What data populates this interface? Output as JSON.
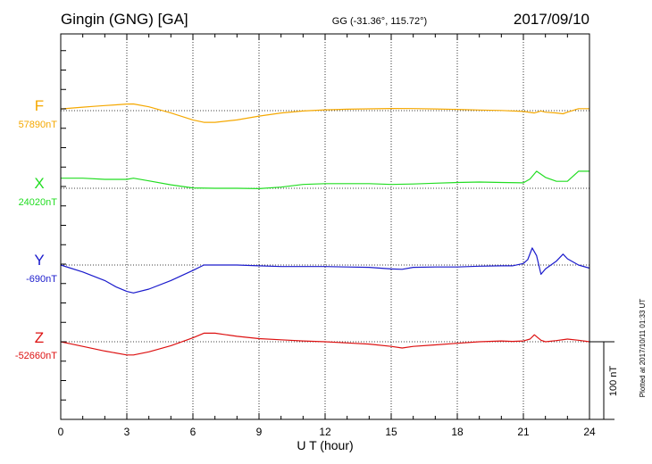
{
  "header": {
    "station": "Gingin (GNG)  [GA]",
    "coords": "GG (-31.36°, 115.72°)",
    "date": "2017/09/10"
  },
  "footer": {
    "plotted": "Plotted at 2017/10/11 01:33 UT"
  },
  "chart_data": {
    "type": "line",
    "xlabel": "U T (hour)",
    "xlim": [
      0,
      24
    ],
    "xticks": [
      "0",
      "3",
      "6",
      "9",
      "12",
      "15",
      "18",
      "21",
      "24"
    ],
    "scale_bar": {
      "label": "100 nT",
      "value_nT": 100
    },
    "series": [
      {
        "name": "F",
        "baseline_label": "57890nT",
        "baseline_nT": 57890,
        "color": "#f5a800",
        "x": [
          0,
          0.5,
          1,
          1.5,
          2,
          2.5,
          3,
          3.3,
          4,
          5,
          6,
          6.5,
          7,
          8,
          9,
          10,
          11,
          12,
          13,
          14,
          15,
          16,
          17,
          18,
          19,
          20,
          21,
          21.5,
          21.8,
          22,
          22.5,
          22.8,
          23,
          23.5,
          24
        ],
        "offset_nT": [
          2.2,
          3.3,
          4.5,
          5.5,
          6.5,
          7.5,
          8.5,
          8.6,
          5,
          -3,
          -12,
          -15,
          -15,
          -12,
          -7,
          -3,
          -0.5,
          1,
          1.8,
          2.3,
          2.8,
          2.6,
          2.2,
          1.6,
          0.8,
          0.2,
          -1,
          -3,
          -0.5,
          -2,
          -3,
          -4,
          -2,
          2.5,
          2.5
        ]
      },
      {
        "name": "X",
        "baseline_label": "24020nT",
        "baseline_nT": 24020,
        "color": "#22dd22",
        "x": [
          0,
          1,
          2,
          3,
          3.3,
          4,
          5,
          6,
          7,
          8,
          9,
          10,
          11,
          12,
          13,
          14,
          15,
          16,
          17,
          18,
          19,
          20,
          21,
          21.3,
          21.6,
          22,
          22.5,
          23,
          23.5,
          24
        ],
        "offset_nT": [
          13,
          13,
          11.5,
          11.5,
          13,
          9.5,
          4.5,
          0.5,
          0,
          0,
          -0.5,
          1.5,
          5,
          6,
          6,
          6,
          5,
          5.5,
          6.5,
          7.5,
          8,
          7.5,
          7,
          12,
          22,
          14,
          9,
          9,
          22,
          22
        ]
      },
      {
        "name": "Y",
        "baseline_label": "-690nT",
        "baseline_nT": -690,
        "color": "#1a1acc",
        "x": [
          0,
          1,
          2,
          2.5,
          3,
          3.3,
          4,
          5,
          6,
          6.5,
          7,
          8,
          9,
          10,
          11,
          12,
          13,
          14,
          15,
          15.5,
          16,
          17,
          18,
          19,
          20,
          20.5,
          21,
          21.2,
          21.4,
          21.6,
          21.8,
          22,
          22.2,
          22.5,
          22.8,
          23,
          23.5,
          24
        ],
        "offset_nT": [
          0,
          -9,
          -20,
          -28,
          -34,
          -36,
          -31,
          -20,
          -7,
          0,
          0,
          0,
          -1,
          -2,
          -2,
          -2,
          -2.5,
          -3,
          -5,
          -5.5,
          -3,
          -2.5,
          -2.5,
          -1.5,
          -1,
          -1,
          2,
          7,
          22,
          12,
          -12,
          -5,
          -1,
          5,
          14,
          8,
          0,
          -4
        ]
      },
      {
        "name": "Z",
        "baseline_label": "-52660nT",
        "baseline_nT": -52660,
        "color": "#dd1111",
        "x": [
          0,
          0.5,
          1,
          2,
          3,
          3.3,
          4,
          5,
          6,
          6.5,
          7,
          8,
          9,
          10,
          11,
          12,
          13,
          14,
          15,
          15.5,
          16,
          17,
          18,
          19,
          20,
          20.5,
          21,
          21.3,
          21.5,
          21.8,
          22,
          22.5,
          23,
          23.5,
          24
        ],
        "offset_nT": [
          0,
          -3,
          -6,
          -12,
          -17,
          -17,
          -13,
          -5,
          5,
          11,
          11,
          7,
          4,
          2.5,
          1,
          0,
          -1.5,
          -3,
          -6,
          -8,
          -6,
          -4,
          -2,
          0,
          1,
          0.5,
          1,
          3.5,
          9,
          2,
          0,
          1.5,
          3.5,
          2,
          0
        ]
      }
    ]
  }
}
